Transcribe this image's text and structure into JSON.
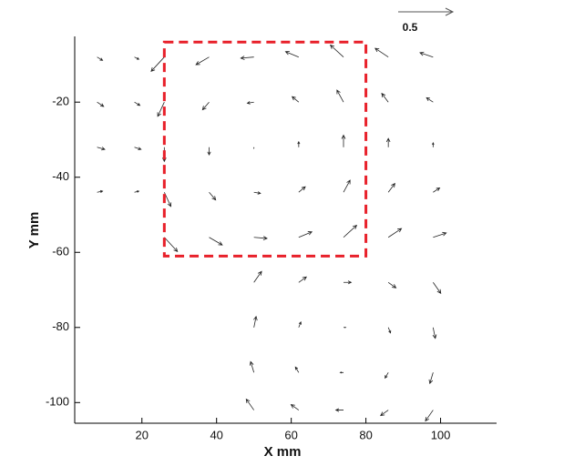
{
  "chart_data": {
    "type": "quiver",
    "xlabel": "X mm",
    "ylabel": "Y mm",
    "xlim": [
      2,
      115
    ],
    "ylim": [
      -105.5,
      -2.5
    ],
    "xticks": [
      20,
      40,
      60,
      80,
      100
    ],
    "yticks": [
      -20,
      -40,
      -60,
      -80,
      -100
    ],
    "reference_vector": 0.5,
    "color": "#222222",
    "highlight_box": {
      "x": [
        26,
        80
      ],
      "y": [
        -61,
        -4
      ],
      "color": "#e8202a"
    },
    "vectors": {
      "x": [
        8,
        18,
        8,
        18,
        8,
        18,
        8,
        18,
        26,
        38,
        50,
        62,
        74,
        86,
        98,
        26,
        38,
        50,
        62,
        74,
        86,
        98,
        26,
        38,
        50,
        62,
        74,
        86,
        98,
        26,
        38,
        50,
        62,
        74,
        86,
        98,
        26,
        38,
        50,
        62,
        74,
        86,
        98,
        50,
        62,
        74,
        86,
        98,
        50,
        62,
        74,
        86,
        98,
        50,
        62,
        74,
        86,
        98,
        50,
        62,
        74,
        86,
        98
      ],
      "y": [
        -8,
        -8,
        -20,
        -20,
        -32,
        -32,
        -44,
        -44,
        -8,
        -8,
        -8,
        -8,
        -8,
        -8,
        -8,
        -20,
        -20,
        -20,
        -20,
        -20,
        -20,
        -20,
        -32,
        -32,
        -32,
        -32,
        -32,
        -32,
        -32,
        -44,
        -44,
        -44,
        -44,
        -44,
        -44,
        -44,
        -56,
        -56,
        -56,
        -56,
        -56,
        -56,
        -56,
        -68,
        -68,
        -68,
        -68,
        -68,
        -80,
        -80,
        -80,
        -80,
        -80,
        -92,
        -92,
        -92,
        -92,
        -92,
        -102,
        -102,
        -102,
        -102,
        -102
      ],
      "u": [
        0.05,
        0.04,
        0.06,
        0.05,
        0.07,
        0.06,
        0.05,
        0.04,
        -0.12,
        -0.12,
        -0.12,
        -0.12,
        -0.12,
        -0.12,
        -0.12,
        -0.06,
        -0.06,
        -0.06,
        -0.06,
        -0.06,
        -0.06,
        -0.06,
        0,
        0,
        0,
        0,
        0,
        0,
        0,
        0.06,
        0.06,
        0.06,
        0.06,
        0.06,
        0.06,
        0.06,
        0.12,
        0.12,
        0.12,
        0.12,
        0.12,
        0.12,
        0.12,
        0.07,
        0.07,
        0.07,
        0.07,
        0.07,
        0.02,
        0.02,
        0.02,
        0.02,
        0.02,
        -0.03,
        -0.03,
        -0.03,
        -0.03,
        -0.03,
        -0.07,
        -0.07,
        -0.07,
        -0.07,
        -0.07
      ],
      "v": [
        -0.03,
        -0.02,
        -0.04,
        -0.03,
        -0.02,
        -0.02,
        0.01,
        0.01,
        -0.13,
        -0.07,
        -0.01,
        0.05,
        0.11,
        0.08,
        0.04,
        -0.13,
        -0.07,
        -0.01,
        0.05,
        0.11,
        0.08,
        0.04,
        -0.13,
        -0.07,
        -0.01,
        0.05,
        0.11,
        0.08,
        0.04,
        -0.13,
        -0.07,
        -0.01,
        0.05,
        0.11,
        0.08,
        0.04,
        -0.13,
        -0.07,
        -0.01,
        0.05,
        0.11,
        0.08,
        0.04,
        0.1,
        0.05,
        0,
        -0.05,
        -0.1,
        0.1,
        0.05,
        0,
        -0.05,
        -0.1,
        0.1,
        0.05,
        0,
        -0.05,
        -0.1,
        0.1,
        0.05,
        0,
        -0.05,
        -0.1
      ]
    }
  }
}
